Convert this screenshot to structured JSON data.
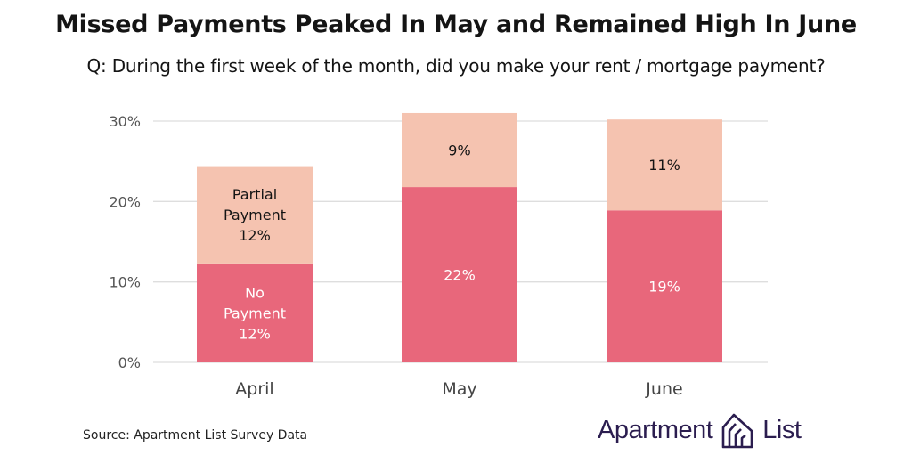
{
  "title": "Missed Payments Peaked In May and Remained High In June",
  "subtitle": "Q: During the first week of the month, did you make your rent / mortgage payment?",
  "source": "Source: Apartment List Survey Data",
  "logo": {
    "word1": "Apartment",
    "word2": "List",
    "icon": "apartment-list-logo-icon",
    "color": "#2b1d4f"
  },
  "chart_data": {
    "type": "bar",
    "stacked": true,
    "categories": [
      "April",
      "May",
      "June"
    ],
    "series": [
      {
        "name": "No Payment",
        "values": [
          12.3,
          21.8,
          18.9
        ],
        "labels": [
          "12%",
          "22%",
          "19%"
        ],
        "color": "#e8677b"
      },
      {
        "name": "Partial Payment",
        "values": [
          12.1,
          9.2,
          11.3
        ],
        "labels": [
          "12%",
          "9%",
          "11%"
        ],
        "color": "#f5c3b0"
      }
    ],
    "inline_series_names": {
      "No Payment": [
        "No",
        "Payment"
      ],
      "Partial Payment": [
        "Partial",
        "Payment"
      ]
    },
    "ylim": [
      0,
      30
    ],
    "yticks": [
      0,
      10,
      20,
      30
    ],
    "ytick_labels": [
      "0%",
      "10%",
      "20%",
      "30%"
    ],
    "grid": true,
    "xlabel": "",
    "ylabel": ""
  }
}
